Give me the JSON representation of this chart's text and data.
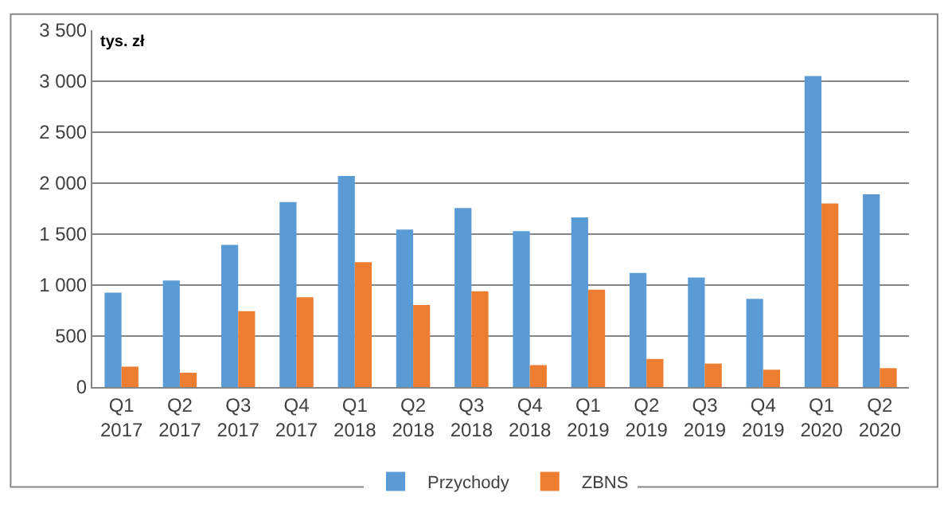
{
  "chart_data": {
    "type": "bar",
    "ylabel": "tys. zł",
    "categories": [
      "Q1 2017",
      "Q2 2017",
      "Q3 2017",
      "Q4 2017",
      "Q1 2018",
      "Q2 2018",
      "Q3 2018",
      "Q4 2018",
      "Q1 2019",
      "Q2 2019",
      "Q3 2019",
      "Q4 2019",
      "Q1 2020",
      "Q2 2020"
    ],
    "series": [
      {
        "name": "Przychody",
        "color": "#5b9bd5",
        "values": [
          925,
          1045,
          1395,
          1815,
          2070,
          1545,
          1755,
          1530,
          1665,
          1120,
          1075,
          865,
          3050,
          1890
        ]
      },
      {
        "name": "ZBNS",
        "color": "#ed7d31",
        "values": [
          200,
          140,
          745,
          880,
          1225,
          805,
          940,
          215,
          955,
          275,
          230,
          170,
          1800,
          185
        ]
      }
    ],
    "ylim": [
      0,
      3500
    ],
    "yticks": [
      0,
      500,
      {
        "value": 1000,
        "label": "1 000"
      },
      {
        "value": 1500,
        "label": "1 500"
      },
      {
        "value": 2000,
        "label": "2 000"
      },
      {
        "value": 2500,
        "label": "2 500"
      },
      {
        "value": 3000,
        "label": "3 000"
      },
      {
        "value": 3500,
        "label": "3 500"
      }
    ],
    "grid": "y",
    "legend": "bottom"
  }
}
